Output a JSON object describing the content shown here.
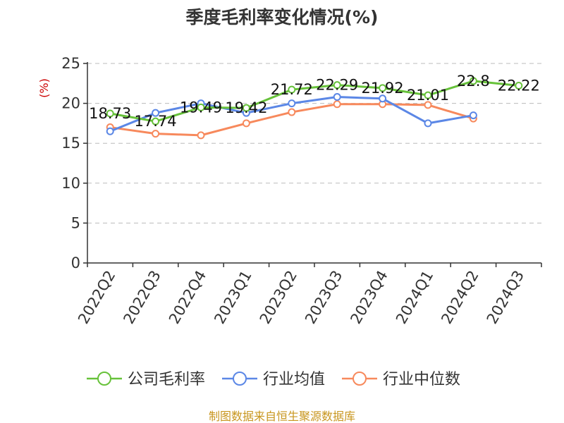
{
  "chart_data": {
    "type": "line",
    "title": "季度毛利率变化情况(%)",
    "ylabel": "(%)",
    "xlabel": "",
    "ylim": [
      0,
      25
    ],
    "yticks": [
      0,
      5,
      10,
      15,
      20,
      25
    ],
    "grid": true,
    "legend_position": "bottom",
    "categories": [
      "2022Q2",
      "2022Q3",
      "2022Q4",
      "2023Q1",
      "2023Q2",
      "2023Q3",
      "2023Q4",
      "2024Q1",
      "2024Q2",
      "2024Q3"
    ],
    "series": [
      {
        "name": "公司毛利率",
        "color": "#67c23a",
        "values": [
          18.73,
          17.74,
          19.49,
          19.42,
          21.72,
          22.29,
          21.92,
          21.01,
          22.8,
          22.22
        ],
        "labels": [
          "18.73",
          "17.74",
          "19.49",
          "19.42",
          "21.72",
          "22.29",
          "21.92",
          "21.01",
          "22.8",
          "22.22"
        ]
      },
      {
        "name": "行业均值",
        "color": "#5b87e6",
        "values": [
          16.5,
          18.8,
          20.0,
          18.8,
          20.0,
          20.8,
          20.6,
          17.5,
          18.5,
          null
        ]
      },
      {
        "name": "行业中位数",
        "color": "#f7895c",
        "values": [
          17.0,
          16.2,
          16.0,
          17.5,
          18.9,
          19.9,
          19.9,
          19.8,
          18.1,
          null
        ]
      }
    ]
  },
  "source_text": "制图数据来自恒生聚源数据库",
  "colors": {
    "title": "#333333",
    "unit": "#cc0000",
    "source": "#c8961e",
    "grid": "#bbbbbb",
    "axis": "#333333"
  }
}
